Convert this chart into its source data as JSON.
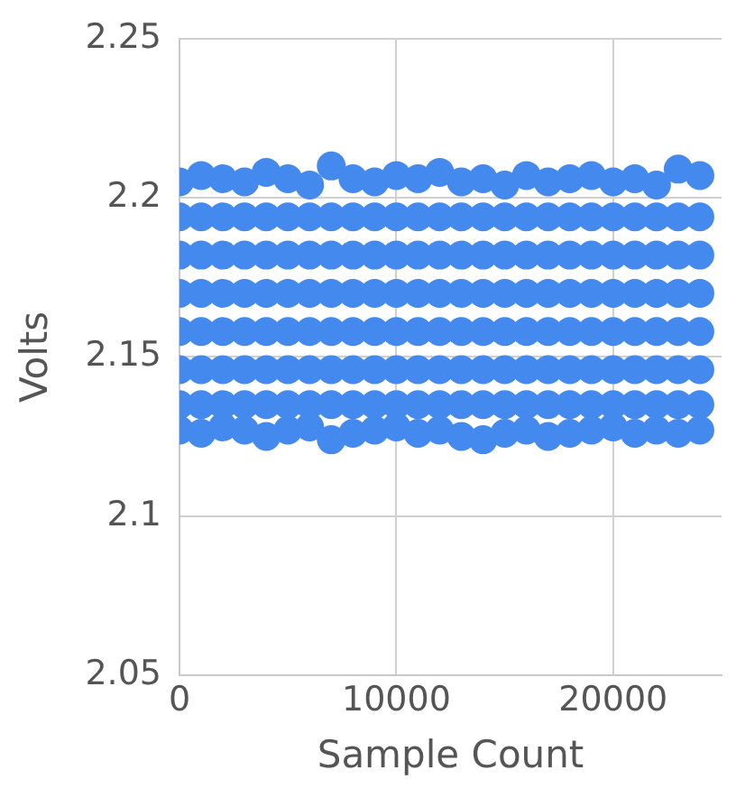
{
  "chart_data": {
    "type": "scatter",
    "xlabel": "Sample Count",
    "ylabel": "Volts",
    "xlim": [
      0,
      25000
    ],
    "xticks": [
      0,
      10000,
      20000
    ],
    "ylim": [
      2.05,
      2.25
    ],
    "yticks": [
      2.05,
      2.1,
      2.15,
      2.2,
      2.25
    ],
    "grid": true,
    "legend": false,
    "marker": "circle",
    "series": [
      {
        "color": "#4389ee",
        "x": [
          0,
          0,
          0,
          0,
          0,
          0,
          0,
          0,
          1000,
          1000,
          1000,
          1000,
          1000,
          1000,
          1000,
          1000,
          2000,
          2000,
          2000,
          2000,
          2000,
          2000,
          2000,
          2000,
          3000,
          3000,
          3000,
          3000,
          3000,
          3000,
          3000,
          3000,
          4000,
          4000,
          4000,
          4000,
          4000,
          4000,
          4000,
          4000,
          5000,
          5000,
          5000,
          5000,
          5000,
          5000,
          5000,
          5000,
          6000,
          6000,
          6000,
          6000,
          6000,
          6000,
          6000,
          6000,
          7000,
          7000,
          7000,
          7000,
          7000,
          7000,
          7000,
          7000,
          8000,
          8000,
          8000,
          8000,
          8000,
          8000,
          8000,
          8000,
          9000,
          9000,
          9000,
          9000,
          9000,
          9000,
          9000,
          9000,
          10000,
          10000,
          10000,
          10000,
          10000,
          10000,
          10000,
          10000,
          11000,
          11000,
          11000,
          11000,
          11000,
          11000,
          11000,
          11000,
          12000,
          12000,
          12000,
          12000,
          12000,
          12000,
          12000,
          12000,
          13000,
          13000,
          13000,
          13000,
          13000,
          13000,
          13000,
          13000,
          14000,
          14000,
          14000,
          14000,
          14000,
          14000,
          14000,
          14000,
          15000,
          15000,
          15000,
          15000,
          15000,
          15000,
          15000,
          15000,
          16000,
          16000,
          16000,
          16000,
          16000,
          16000,
          16000,
          16000,
          17000,
          17000,
          17000,
          17000,
          17000,
          17000,
          17000,
          17000,
          18000,
          18000,
          18000,
          18000,
          18000,
          18000,
          18000,
          18000,
          19000,
          19000,
          19000,
          19000,
          19000,
          19000,
          19000,
          19000,
          20000,
          20000,
          20000,
          20000,
          20000,
          20000,
          20000,
          20000,
          21000,
          21000,
          21000,
          21000,
          21000,
          21000,
          21000,
          21000,
          22000,
          22000,
          22000,
          22000,
          22000,
          22000,
          22000,
          22000,
          23000,
          23000,
          23000,
          23000,
          23000,
          23000,
          23000,
          23000,
          24000,
          24000,
          24000,
          24000,
          24000,
          24000,
          24000,
          24000
        ],
        "values": [
          2.205,
          2.194,
          2.182,
          2.17,
          2.158,
          2.146,
          2.135,
          2.127,
          2.207,
          2.194,
          2.182,
          2.17,
          2.158,
          2.146,
          2.135,
          2.126,
          2.206,
          2.194,
          2.182,
          2.17,
          2.158,
          2.146,
          2.135,
          2.128,
          2.205,
          2.194,
          2.182,
          2.17,
          2.158,
          2.146,
          2.135,
          2.127,
          2.208,
          2.194,
          2.182,
          2.17,
          2.158,
          2.146,
          2.135,
          2.125,
          2.206,
          2.194,
          2.182,
          2.17,
          2.158,
          2.146,
          2.135,
          2.127,
          2.204,
          2.194,
          2.182,
          2.17,
          2.158,
          2.146,
          2.135,
          2.128,
          2.21,
          2.194,
          2.182,
          2.17,
          2.158,
          2.146,
          2.135,
          2.124,
          2.206,
          2.194,
          2.182,
          2.17,
          2.158,
          2.146,
          2.135,
          2.126,
          2.205,
          2.194,
          2.182,
          2.17,
          2.158,
          2.146,
          2.135,
          2.127,
          2.207,
          2.194,
          2.182,
          2.17,
          2.158,
          2.146,
          2.135,
          2.128,
          2.206,
          2.194,
          2.182,
          2.17,
          2.158,
          2.146,
          2.135,
          2.126,
          2.208,
          2.194,
          2.182,
          2.17,
          2.158,
          2.146,
          2.135,
          2.127,
          2.205,
          2.194,
          2.182,
          2.17,
          2.158,
          2.146,
          2.135,
          2.125,
          2.206,
          2.194,
          2.182,
          2.17,
          2.158,
          2.146,
          2.135,
          2.124,
          2.204,
          2.194,
          2.182,
          2.17,
          2.158,
          2.146,
          2.135,
          2.126,
          2.207,
          2.194,
          2.182,
          2.17,
          2.158,
          2.146,
          2.135,
          2.127,
          2.205,
          2.194,
          2.182,
          2.17,
          2.158,
          2.146,
          2.135,
          2.125,
          2.206,
          2.194,
          2.182,
          2.17,
          2.158,
          2.146,
          2.135,
          2.126,
          2.207,
          2.194,
          2.182,
          2.17,
          2.158,
          2.146,
          2.135,
          2.127,
          2.205,
          2.194,
          2.182,
          2.17,
          2.158,
          2.146,
          2.135,
          2.128,
          2.206,
          2.194,
          2.182,
          2.17,
          2.158,
          2.146,
          2.135,
          2.126,
          2.204,
          2.194,
          2.182,
          2.17,
          2.158,
          2.146,
          2.135,
          2.127,
          2.209,
          2.194,
          2.182,
          2.17,
          2.158,
          2.146,
          2.135,
          2.126,
          2.207,
          2.194,
          2.182,
          2.17,
          2.158,
          2.146,
          2.135,
          2.127
        ]
      }
    ]
  }
}
